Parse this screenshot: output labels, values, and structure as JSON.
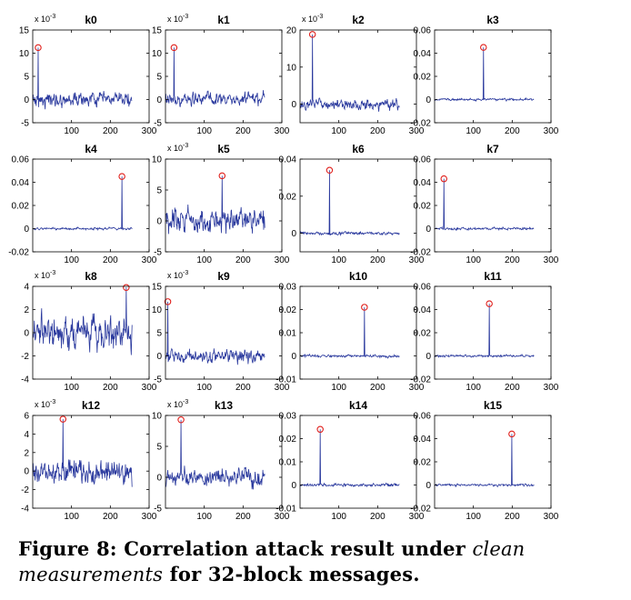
{
  "caption": {
    "label": "Figure 8:",
    "text_before": "Correlation attack result under",
    "emphasis": "clean measurements",
    "text_after": "for 32-block messages."
  },
  "style": {
    "line_color": "#2b3a9e",
    "marker_color": "#e0201c",
    "axis_color": "#000000"
  },
  "chart_data": [
    {
      "type": "line",
      "title": "k0",
      "scale_label": "x 10^-3",
      "scale_sup": "-3",
      "xlim": [
        0,
        300
      ],
      "xticks": [
        100,
        200,
        300
      ],
      "ylim": [
        -5,
        15
      ],
      "yticks": [
        -5,
        0,
        5,
        10,
        15
      ],
      "n_points": 256,
      "noise_level": 1.2,
      "peak": {
        "x": 14,
        "y": 11.2
      }
    },
    {
      "type": "line",
      "title": "k1",
      "scale_label": "x 10^-3",
      "scale_sup": "-3",
      "xlim": [
        0,
        300
      ],
      "xticks": [
        100,
        200,
        300
      ],
      "ylim": [
        -5,
        15
      ],
      "yticks": [
        -5,
        0,
        5,
        10,
        15
      ],
      "n_points": 256,
      "noise_level": 1.1,
      "peak": {
        "x": 22,
        "y": 11.2
      }
    },
    {
      "type": "line",
      "title": "k2",
      "scale_label": "x 10^-3",
      "scale_sup": "-3",
      "xlim": [
        0,
        300
      ],
      "xticks": [
        100,
        200,
        300
      ],
      "ylim": [
        -5,
        20
      ],
      "yticks": [
        0,
        10,
        20
      ],
      "n_points": 256,
      "noise_level": 1.2,
      "peak": {
        "x": 32,
        "y": 18.8
      }
    },
    {
      "type": "line",
      "title": "k3",
      "scale_label": "",
      "scale_sup": "",
      "xlim": [
        0,
        300
      ],
      "xticks": [
        100,
        200,
        300
      ],
      "ylim": [
        -0.02,
        0.06
      ],
      "yticks": [
        -0.02,
        0,
        0.02,
        0.04,
        0.06
      ],
      "n_points": 256,
      "noise_level": 0.0008,
      "peak": {
        "x": 126,
        "y": 0.045
      }
    },
    {
      "type": "line",
      "title": "k4",
      "scale_label": "",
      "scale_sup": "",
      "xlim": [
        0,
        300
      ],
      "xticks": [
        100,
        200,
        300
      ],
      "ylim": [
        -0.02,
        0.06
      ],
      "yticks": [
        -0.02,
        0,
        0.02,
        0.04,
        0.06
      ],
      "n_points": 256,
      "noise_level": 0.0008,
      "peak": {
        "x": 230,
        "y": 0.045
      }
    },
    {
      "type": "line",
      "title": "k5",
      "scale_label": "x 10^-3",
      "scale_sup": "-3",
      "xlim": [
        0,
        300
      ],
      "xticks": [
        100,
        200,
        300
      ],
      "ylim": [
        -5,
        10
      ],
      "yticks": [
        -5,
        0,
        5,
        10
      ],
      "n_points": 256,
      "noise_level": 1.5,
      "peak": {
        "x": 146,
        "y": 7.3
      }
    },
    {
      "type": "line",
      "title": "k6",
      "scale_label": "",
      "scale_sup": "",
      "xlim": [
        0,
        300
      ],
      "xticks": [
        100,
        200,
        300
      ],
      "ylim": [
        -0.01,
        0.04
      ],
      "yticks": [
        0,
        0.02,
        0.04
      ],
      "n_points": 256,
      "noise_level": 0.0006,
      "peak": {
        "x": 76,
        "y": 0.034
      }
    },
    {
      "type": "line",
      "title": "k7",
      "scale_label": "",
      "scale_sup": "",
      "xlim": [
        0,
        300
      ],
      "xticks": [
        100,
        200,
        300
      ],
      "ylim": [
        -0.02,
        0.06
      ],
      "yticks": [
        -0.02,
        0,
        0.02,
        0.04,
        0.06
      ],
      "n_points": 256,
      "noise_level": 0.0008,
      "peak": {
        "x": 24,
        "y": 0.043
      }
    },
    {
      "type": "line",
      "title": "k8",
      "scale_label": "x 10^-3",
      "scale_sup": "-3",
      "xlim": [
        0,
        300
      ],
      "xticks": [
        100,
        200,
        300
      ],
      "ylim": [
        -4,
        4
      ],
      "yticks": [
        -4,
        -2,
        0,
        2,
        4
      ],
      "n_points": 256,
      "noise_level": 1.1,
      "peak": {
        "x": 241,
        "y": 3.9
      }
    },
    {
      "type": "line",
      "title": "k9",
      "scale_label": "x 10^-3",
      "scale_sup": "-3",
      "xlim": [
        0,
        300
      ],
      "xticks": [
        100,
        200,
        300
      ],
      "ylim": [
        -5,
        15
      ],
      "yticks": [
        -5,
        0,
        5,
        10,
        15
      ],
      "n_points": 256,
      "noise_level": 1.1,
      "peak": {
        "x": 6,
        "y": 11.7
      }
    },
    {
      "type": "line",
      "title": "k10",
      "scale_label": "",
      "scale_sup": "",
      "xlim": [
        0,
        300
      ],
      "xticks": [
        100,
        200,
        300
      ],
      "ylim": [
        -0.01,
        0.03
      ],
      "yticks": [
        -0.01,
        0,
        0.01,
        0.02,
        0.03
      ],
      "n_points": 256,
      "noise_level": 0.0005,
      "peak": {
        "x": 166,
        "y": 0.021
      }
    },
    {
      "type": "line",
      "title": "k11",
      "scale_label": "",
      "scale_sup": "",
      "xlim": [
        0,
        300
      ],
      "xticks": [
        100,
        200,
        300
      ],
      "ylim": [
        -0.02,
        0.06
      ],
      "yticks": [
        -0.02,
        0,
        0.02,
        0.04,
        0.06
      ],
      "n_points": 256,
      "noise_level": 0.0008,
      "peak": {
        "x": 141,
        "y": 0.045
      }
    },
    {
      "type": "line",
      "title": "k12",
      "scale_label": "x 10^-3",
      "scale_sup": "-3",
      "xlim": [
        0,
        300
      ],
      "xticks": [
        100,
        200,
        300
      ],
      "ylim": [
        -4,
        6
      ],
      "yticks": [
        -4,
        -2,
        0,
        2,
        4,
        6
      ],
      "n_points": 256,
      "noise_level": 1.0,
      "peak": {
        "x": 78,
        "y": 5.6
      }
    },
    {
      "type": "line",
      "title": "k13",
      "scale_label": "x 10^-3",
      "scale_sup": "-3",
      "xlim": [
        0,
        300
      ],
      "xticks": [
        100,
        200,
        300
      ],
      "ylim": [
        -5,
        10
      ],
      "yticks": [
        -5,
        0,
        5,
        10
      ],
      "n_points": 256,
      "noise_level": 1.1,
      "peak": {
        "x": 40,
        "y": 9.3
      }
    },
    {
      "type": "line",
      "title": "k14",
      "scale_label": "",
      "scale_sup": "",
      "xlim": [
        0,
        300
      ],
      "xticks": [
        100,
        200,
        300
      ],
      "ylim": [
        -0.01,
        0.03
      ],
      "yticks": [
        -0.01,
        0,
        0.01,
        0.02,
        0.03
      ],
      "n_points": 256,
      "noise_level": 0.0005,
      "peak": {
        "x": 52,
        "y": 0.024
      }
    },
    {
      "type": "line",
      "title": "k15",
      "scale_label": "",
      "scale_sup": "",
      "xlim": [
        0,
        300
      ],
      "xticks": [
        100,
        200,
        300
      ],
      "ylim": [
        -0.02,
        0.06
      ],
      "yticks": [
        -0.02,
        0,
        0.02,
        0.04,
        0.06
      ],
      "n_points": 256,
      "noise_level": 0.0008,
      "peak": {
        "x": 199,
        "y": 0.044
      }
    }
  ]
}
